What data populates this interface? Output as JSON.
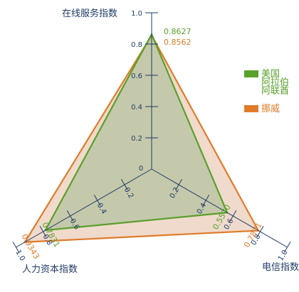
{
  "chart_data": {
    "type": "radar",
    "axes": [
      "在线服务指数",
      "电信指数",
      "人力资本指数"
    ],
    "ticks": [
      "0",
      "0.2",
      "0.4",
      "0.6",
      "0.8",
      "1.0"
    ],
    "range": [
      0,
      1
    ],
    "series": [
      {
        "name": "美国 阿拉伯 阿联酋",
        "legend_lines": [
          "美国",
          "阿拉伯",
          "阿联酋"
        ],
        "values": [
          0.8627,
          0.557,
          0.7831
        ],
        "labels": [
          "0.8627",
          "0.5570",
          "0.7831"
        ],
        "color": "#5aa02c"
      },
      {
        "name": "挪威",
        "legend_lines": [
          "挪威"
        ],
        "values": [
          0.8562,
          0.7871,
          0.9343
        ],
        "labels": [
          "0.8562",
          "0.7871",
          "0.9343"
        ],
        "color": "#e07b2a"
      }
    ],
    "legend_position": "right",
    "grid": false
  }
}
